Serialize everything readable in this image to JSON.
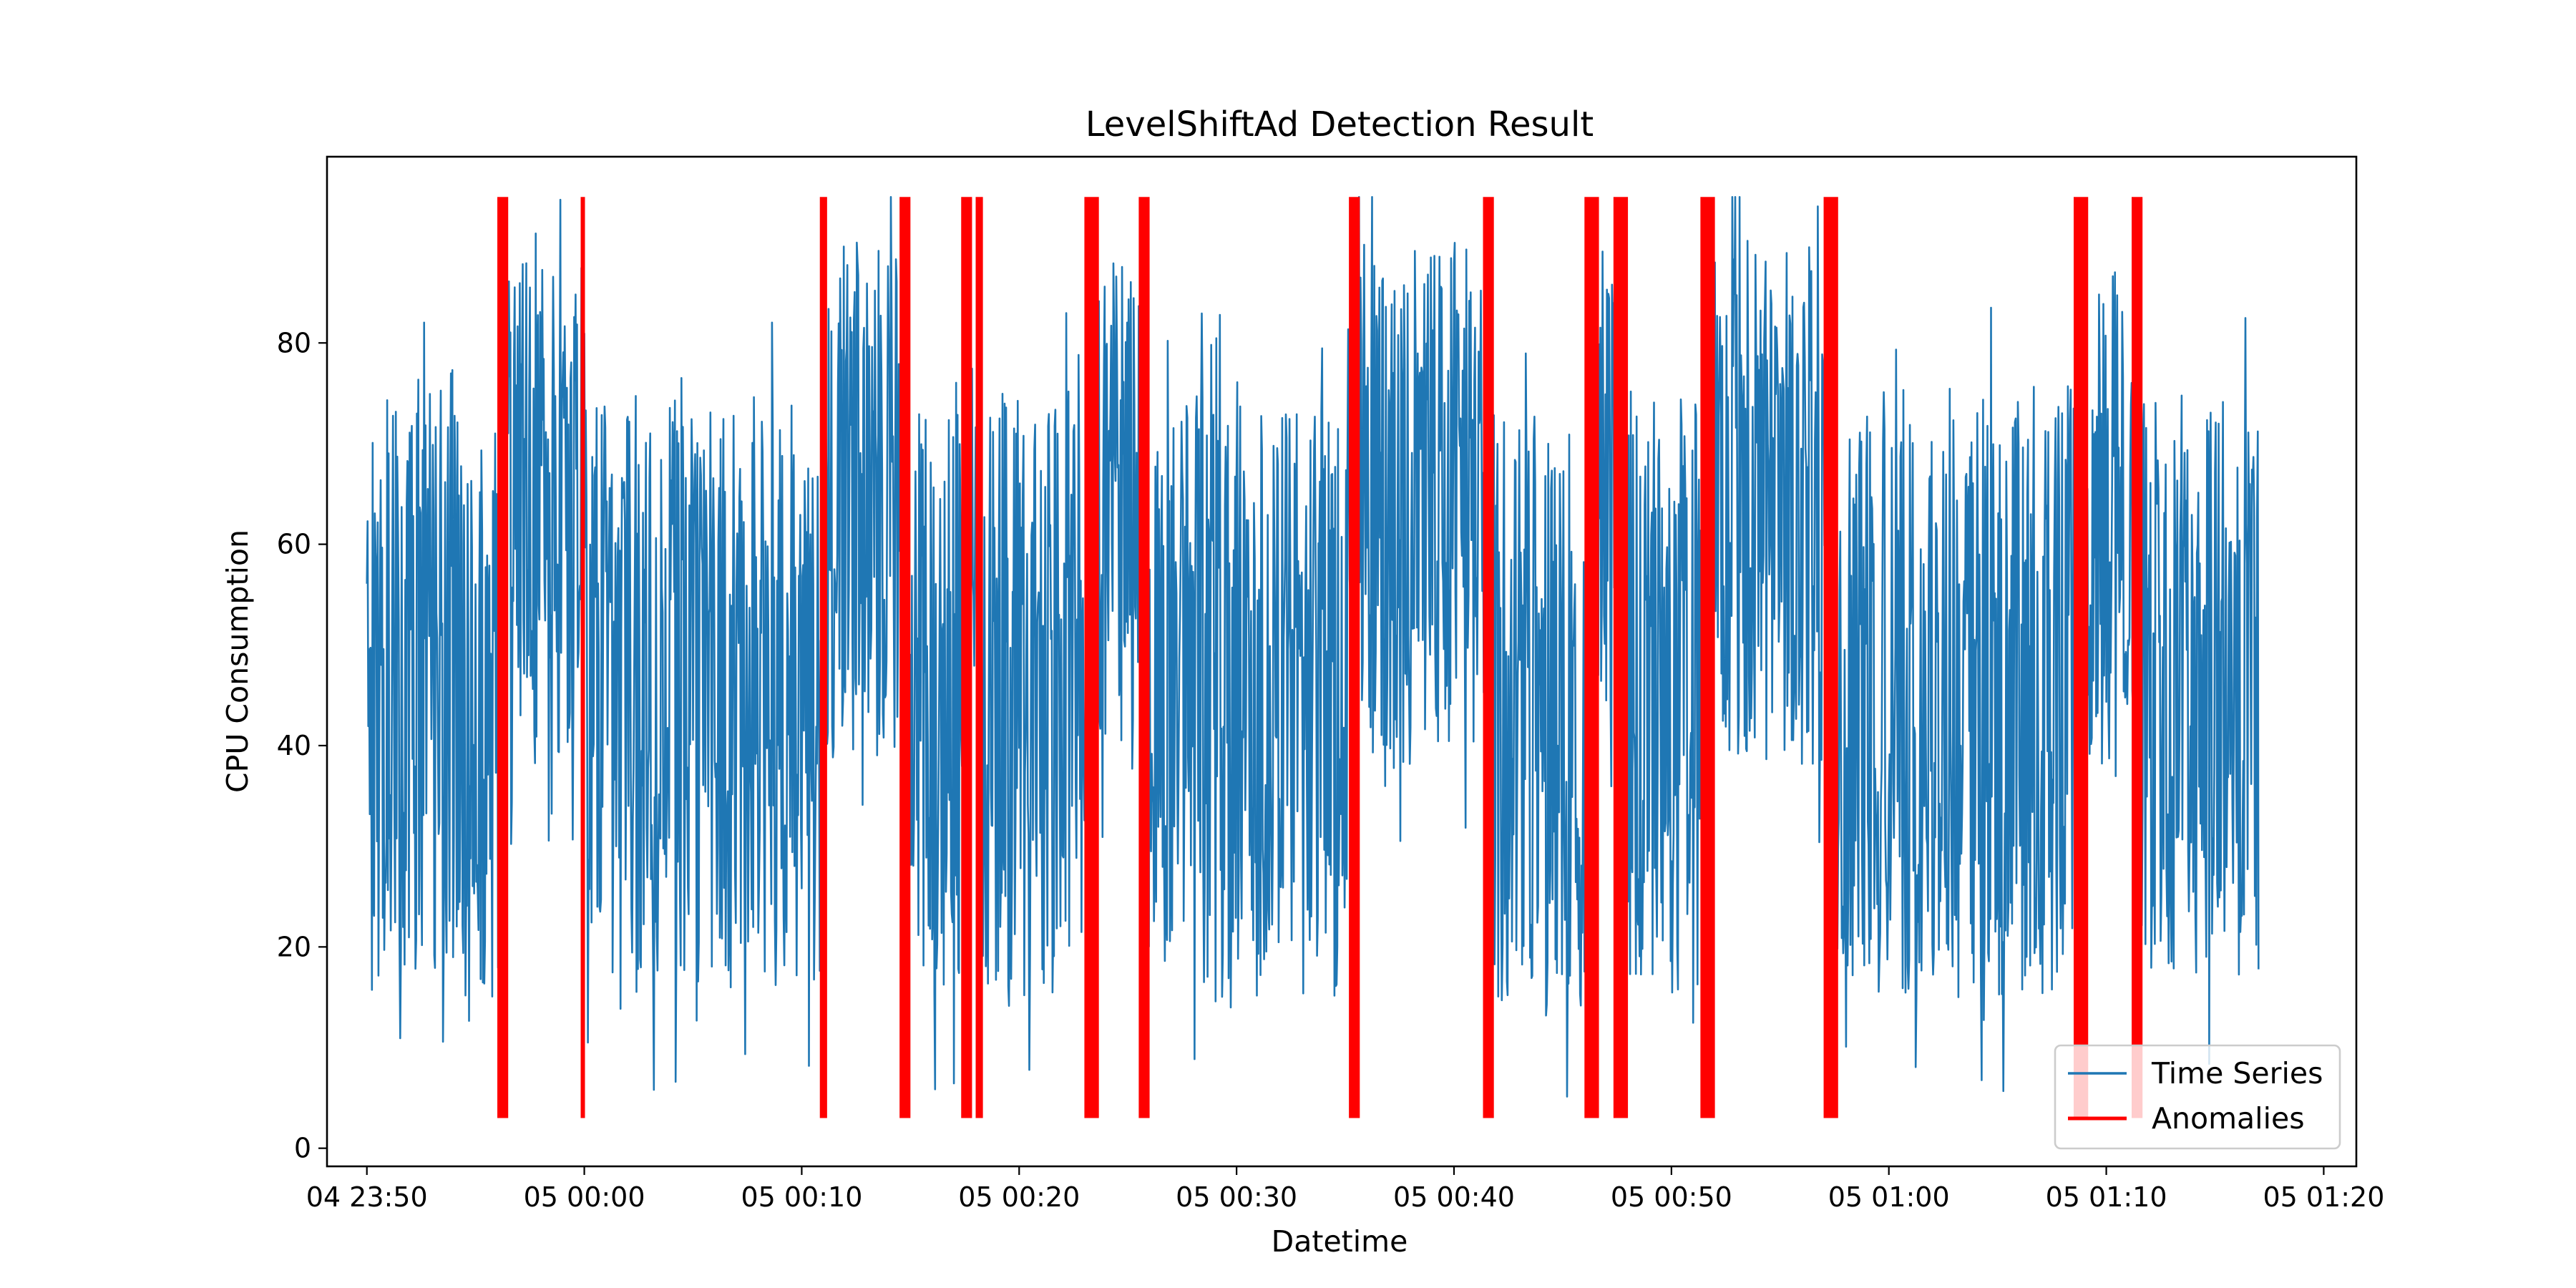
{
  "chart_data": {
    "type": "line",
    "title": "LevelShiftAd Detection Result",
    "xlabel": "Datetime",
    "ylabel": "CPU Consumption",
    "x_range": [
      "04 23:48:10",
      "05 01:21:30"
    ],
    "ylim": [
      -1.8,
      98.5
    ],
    "x_ticks": [
      "04 23:50",
      "05 00:00",
      "05 00:10",
      "05 00:20",
      "05 00:30",
      "05 00:40",
      "05 00:50",
      "05 01:00",
      "05 01:10",
      "05 01:20"
    ],
    "y_ticks": [
      "0",
      "20",
      "40",
      "60",
      "80"
    ],
    "grid": false,
    "legend": "lower right",
    "legend_entries": [
      "Time Series",
      "Anomalies"
    ],
    "series": [
      {
        "name": "Time Series",
        "color": "#1f77b4",
        "start": "04 23:50:00",
        "end": "05 01:17:00",
        "regimes": [
          {
            "start": "04 23:50:00",
            "end": "04 23:56:20",
            "low": 15,
            "high": 75
          },
          {
            "start": "04 23:56:20",
            "end": "05 00:00:00",
            "low": 38,
            "high": 88
          },
          {
            "start": "05 00:00:00",
            "end": "05 00:11:00",
            "low": 15,
            "high": 75
          },
          {
            "start": "05 00:11:00",
            "end": "05 00:14:40",
            "low": 38,
            "high": 90
          },
          {
            "start": "05 00:14:40",
            "end": "05 00:17:40",
            "low": 15,
            "high": 73
          },
          {
            "start": "05 00:17:40",
            "end": "05 00:18:20",
            "low": 40,
            "high": 85
          },
          {
            "start": "05 00:18:20",
            "end": "05 00:23:10",
            "low": 15,
            "high": 76
          },
          {
            "start": "05 00:23:10",
            "end": "05 00:25:40",
            "low": 38,
            "high": 88
          },
          {
            "start": "05 00:25:40",
            "end": "05 00:35:20",
            "low": 15,
            "high": 75
          },
          {
            "start": "05 00:35:20",
            "end": "05 00:41:30",
            "low": 38,
            "high": 90
          },
          {
            "start": "05 00:41:30",
            "end": "05 00:46:20",
            "low": 13,
            "high": 73
          },
          {
            "start": "05 00:46:20",
            "end": "05 00:47:30",
            "low": 43,
            "high": 88
          },
          {
            "start": "05 00:47:30",
            "end": "05 00:51:30",
            "low": 15,
            "high": 76
          },
          {
            "start": "05 00:51:30",
            "end": "05 00:57:10",
            "low": 38,
            "high": 90
          },
          {
            "start": "05 00:57:10",
            "end": "05 01:08:30",
            "low": 15,
            "high": 76
          },
          {
            "start": "05 01:08:30",
            "end": "05 01:11:20",
            "low": 38,
            "high": 88
          },
          {
            "start": "05 01:11:20",
            "end": "05 01:17:00",
            "low": 17,
            "high": 75
          }
        ]
      },
      {
        "name": "Anomalies",
        "color": "#ff0000",
        "y_range": [
          3,
          94.5
        ],
        "marks": [
          {
            "start": "04 23:56:00",
            "end": "04 23:56:30"
          },
          {
            "start": "04 23:59:50",
            "end": "04 23:59:59"
          },
          {
            "start": "05 00:10:50",
            "end": "05 00:11:10"
          },
          {
            "start": "05 00:14:30",
            "end": "05 00:15:00"
          },
          {
            "start": "05 00:17:20",
            "end": "05 00:17:50"
          },
          {
            "start": "05 00:18:00",
            "end": "05 00:18:20"
          },
          {
            "start": "05 00:23:00",
            "end": "05 00:23:40"
          },
          {
            "start": "05 00:25:30",
            "end": "05 00:26:00"
          },
          {
            "start": "05 00:35:10",
            "end": "05 00:35:40"
          },
          {
            "start": "05 00:41:20",
            "end": "05 00:41:50"
          },
          {
            "start": "05 00:46:00",
            "end": "05 00:46:40"
          },
          {
            "start": "05 00:47:20",
            "end": "05 00:48:00"
          },
          {
            "start": "05 00:51:20",
            "end": "05 00:52:00"
          },
          {
            "start": "05 00:57:00",
            "end": "05 00:57:40"
          },
          {
            "start": "05 01:08:30",
            "end": "05 01:09:10"
          },
          {
            "start": "05 01:11:10",
            "end": "05 01:11:40"
          }
        ]
      }
    ]
  }
}
